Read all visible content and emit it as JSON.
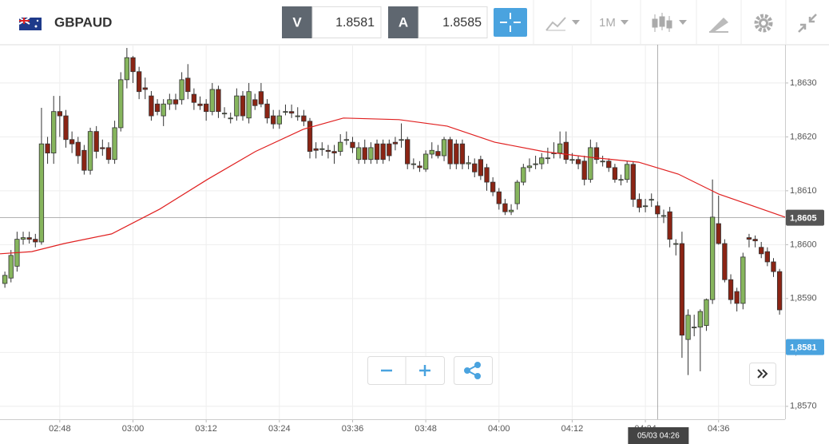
{
  "toolbar": {
    "symbol": "GBPAUD",
    "bid": {
      "label": "V",
      "value": "1.8581"
    },
    "ask": {
      "label": "A",
      "value": "1.8585"
    },
    "timeframe": "1M"
  },
  "chart_data": {
    "type": "candlestick",
    "xlim": [
      -0.8,
      127.9
    ],
    "xticks": [
      {
        "value": 9,
        "label": "02:48"
      },
      {
        "value": 21,
        "label": "03:00"
      },
      {
        "value": 33,
        "label": "03:12"
      },
      {
        "value": 45,
        "label": "03:24"
      },
      {
        "value": 57,
        "label": "03:36"
      },
      {
        "value": 69,
        "label": "03:48"
      },
      {
        "value": 81,
        "label": "04:00"
      },
      {
        "value": 93,
        "label": "04:12"
      },
      {
        "value": 105,
        "label": "04:24"
      },
      {
        "value": 117,
        "label": "04:36"
      }
    ],
    "ylim": [
      1.85676,
      1.86371
    ],
    "yticks": [
      {
        "value": 1.857,
        "label": "1,8570"
      },
      {
        "value": 1.858,
        "label": "1,8580"
      },
      {
        "value": 1.859,
        "label": "1,8590"
      },
      {
        "value": 1.86,
        "label": "1,8600"
      },
      {
        "value": 1.861,
        "label": "1,8610"
      },
      {
        "value": 1.862,
        "label": "1,8620"
      },
      {
        "value": 1.863,
        "label": "1,8630"
      }
    ],
    "grid": true,
    "up_color": "#86b55d",
    "down_color": "#8b2414",
    "candles": [
      [
        1.85928,
        1.8595,
        1.8592,
        1.85943
      ],
      [
        1.85938,
        1.8599,
        1.8593,
        1.8598
      ],
      [
        1.8596,
        1.86024,
        1.8595,
        1.8601
      ],
      [
        1.8601,
        1.86024,
        1.86,
        1.86013
      ],
      [
        1.86013,
        1.86024,
        1.86002,
        1.8601
      ],
      [
        1.8601,
        1.8602,
        1.85995,
        1.86005
      ],
      [
        1.86005,
        1.86254,
        1.86,
        1.86187
      ],
      [
        1.86187,
        1.862,
        1.8615,
        1.8617
      ],
      [
        1.8617,
        1.86276,
        1.8615,
        1.86247
      ],
      [
        1.86247,
        1.86276,
        1.862,
        1.86239
      ],
      [
        1.86239,
        1.8625,
        1.8618,
        1.86195
      ],
      [
        1.86195,
        1.8621,
        1.8617,
        1.86187
      ],
      [
        1.8619,
        1.862,
        1.8615,
        1.86165
      ],
      [
        1.86175,
        1.86185,
        1.8613,
        1.86138
      ],
      [
        1.86138,
        1.86217,
        1.8613,
        1.8621
      ],
      [
        1.8621,
        1.8622,
        1.8616,
        1.86173
      ],
      [
        1.8618,
        1.86195,
        1.86165,
        1.86178
      ],
      [
        1.8618,
        1.8619,
        1.8615,
        1.86158
      ],
      [
        1.86158,
        1.8623,
        1.8615,
        1.86217
      ],
      [
        1.86217,
        1.8632,
        1.8621,
        1.86306
      ],
      [
        1.86306,
        1.86365,
        1.8629,
        1.86347
      ],
      [
        1.86347,
        1.8635,
        1.863,
        1.86321
      ],
      [
        1.86321,
        1.8633,
        1.8627,
        1.86284
      ],
      [
        1.86291,
        1.8631,
        1.8627,
        1.86288
      ],
      [
        1.86276,
        1.86285,
        1.8623,
        1.86239
      ],
      [
        1.86261,
        1.8627,
        1.8624,
        1.86247
      ],
      [
        1.86239,
        1.8627,
        1.8622,
        1.86261
      ],
      [
        1.86261,
        1.8628,
        1.8625,
        1.86269
      ],
      [
        1.86269,
        1.8628,
        1.8625,
        1.86261
      ],
      [
        1.86269,
        1.8632,
        1.8626,
        1.86306
      ],
      [
        1.86309,
        1.86335,
        1.8627,
        1.86284
      ],
      [
        1.86279,
        1.8629,
        1.8625,
        1.86264
      ],
      [
        1.86261,
        1.86275,
        1.8625,
        1.86258
      ],
      [
        1.86261,
        1.8627,
        1.8623,
        1.86247
      ],
      [
        1.86247,
        1.863,
        1.8624,
        1.86288
      ],
      [
        1.86288,
        1.86295,
        1.86235,
        1.86247
      ],
      [
        1.86244,
        1.86255,
        1.86235,
        1.86244
      ],
      [
        1.86235,
        1.86245,
        1.86225,
        1.86235
      ],
      [
        1.86239,
        1.8629,
        1.8623,
        1.86276
      ],
      [
        1.86276,
        1.86285,
        1.8623,
        1.86239
      ],
      [
        1.86235,
        1.863,
        1.86225,
        1.86284
      ],
      [
        1.86269,
        1.8628,
        1.8625,
        1.86258
      ],
      [
        1.86284,
        1.863,
        1.86255,
        1.86261
      ],
      [
        1.86261,
        1.8627,
        1.86225,
        1.86235
      ],
      [
        1.86239,
        1.8625,
        1.86215,
        1.86224
      ],
      [
        1.86224,
        1.8625,
        1.86215,
        1.86239
      ],
      [
        1.86247,
        1.8626,
        1.8624,
        1.86247
      ],
      [
        1.86247,
        1.8626,
        1.86235,
        1.86244
      ],
      [
        1.86239,
        1.86255,
        1.8623,
        1.86239
      ],
      [
        1.86239,
        1.8625,
        1.8622,
        1.86229
      ],
      [
        1.86229,
        1.86235,
        1.8616,
        1.86173
      ],
      [
        1.86178,
        1.8619,
        1.8616,
        1.86175
      ],
      [
        1.86178,
        1.8619,
        1.86165,
        1.86178
      ],
      [
        1.86175,
        1.86185,
        1.8616,
        1.86173
      ],
      [
        1.86173,
        1.86185,
        1.8615,
        1.8617
      ],
      [
        1.86173,
        1.86205,
        1.86165,
        1.8619
      ],
      [
        1.86195,
        1.8621,
        1.86185,
        1.86195
      ],
      [
        1.8619,
        1.862,
        1.8617,
        1.8618
      ],
      [
        1.86158,
        1.8619,
        1.8615,
        1.8618
      ],
      [
        1.8618,
        1.86195,
        1.8615,
        1.86158
      ],
      [
        1.86158,
        1.8619,
        1.8615,
        1.8618
      ],
      [
        1.86187,
        1.86195,
        1.8615,
        1.86158
      ],
      [
        1.86187,
        1.86195,
        1.8615,
        1.86158
      ],
      [
        1.86187,
        1.86195,
        1.86155,
        1.86165
      ],
      [
        1.8619,
        1.862,
        1.86175,
        1.86187
      ],
      [
        1.86195,
        1.86225,
        1.8618,
        1.86195
      ],
      [
        1.86195,
        1.862,
        1.8614,
        1.8615
      ],
      [
        1.8615,
        1.8616,
        1.8614,
        1.8615
      ],
      [
        1.86146,
        1.86155,
        1.86135,
        1.86143
      ],
      [
        1.8614,
        1.86175,
        1.86135,
        1.86168
      ],
      [
        1.86168,
        1.8619,
        1.8616,
        1.86175
      ],
      [
        1.86173,
        1.86185,
        1.8616,
        1.86165
      ],
      [
        1.86165,
        1.862,
        1.86155,
        1.86195
      ],
      [
        1.86195,
        1.862,
        1.8614,
        1.8615
      ],
      [
        1.86187,
        1.86195,
        1.8614,
        1.8615
      ],
      [
        1.86187,
        1.86195,
        1.8614,
        1.8615
      ],
      [
        1.8615,
        1.86165,
        1.8614,
        1.86152
      ],
      [
        1.8615,
        1.8616,
        1.86125,
        1.86135
      ],
      [
        1.86158,
        1.86165,
        1.8612,
        1.86128
      ],
      [
        1.86143,
        1.8615,
        1.861,
        1.86116
      ],
      [
        1.86116,
        1.86125,
        1.8609,
        1.86098
      ],
      [
        1.86098,
        1.86105,
        1.86065,
        1.86076
      ],
      [
        1.86076,
        1.86085,
        1.86055,
        1.86061
      ],
      [
        1.86061,
        1.86075,
        1.86055,
        1.86064
      ],
      [
        1.86076,
        1.8612,
        1.86065,
        1.86116
      ],
      [
        1.86116,
        1.8615,
        1.8611,
        1.86143
      ],
      [
        1.86143,
        1.8616,
        1.86135,
        1.86146
      ],
      [
        1.8615,
        1.86165,
        1.8614,
        1.8615
      ],
      [
        1.8615,
        1.8617,
        1.8614,
        1.86161
      ],
      [
        1.86161,
        1.8618,
        1.8615,
        1.86161
      ],
      [
        1.8617,
        1.8619,
        1.8616,
        1.8617
      ],
      [
        1.8617,
        1.8621,
        1.8616,
        1.86187
      ],
      [
        1.8619,
        1.8621,
        1.8615,
        1.86158
      ],
      [
        1.86158,
        1.8617,
        1.8615,
        1.86158
      ],
      [
        1.86158,
        1.86165,
        1.8614,
        1.8615
      ],
      [
        1.86155,
        1.86165,
        1.8611,
        1.86121
      ],
      [
        1.86121,
        1.86195,
        1.86115,
        1.8618
      ],
      [
        1.8618,
        1.8619,
        1.8615,
        1.86158
      ],
      [
        1.86155,
        1.86165,
        1.86145,
        1.86155
      ],
      [
        1.86155,
        1.8616,
        1.86135,
        1.86143
      ],
      [
        1.86143,
        1.8615,
        1.86115,
        1.86121
      ],
      [
        1.86121,
        1.8613,
        1.8611,
        1.86121
      ],
      [
        1.86121,
        1.86155,
        1.86115,
        1.86149
      ],
      [
        1.86149,
        1.86155,
        1.8607,
        1.86084
      ],
      [
        1.86084,
        1.86095,
        1.8606,
        1.86069
      ],
      [
        1.86072,
        1.86085,
        1.8606,
        1.86072
      ],
      [
        1.86084,
        1.86095,
        1.8607,
        1.86084
      ],
      [
        1.86072,
        1.8608,
        1.8605,
        1.86057
      ],
      [
        1.86054,
        1.86065,
        1.8604,
        1.86054
      ],
      [
        1.86061,
        1.8607,
        1.85995,
        1.8601
      ],
      [
        1.86002,
        1.8601,
        1.8598,
        1.86002
      ],
      [
        1.86002,
        1.86024,
        1.8579,
        1.85832
      ],
      [
        1.85824,
        1.8588,
        1.85758,
        1.85869
      ],
      [
        1.85847,
        1.8587,
        1.8583,
        1.85847
      ],
      [
        1.85847,
        1.8588,
        1.85765,
        1.85876
      ],
      [
        1.8585,
        1.859,
        1.8584,
        1.85898
      ],
      [
        1.85898,
        1.86121,
        1.8589,
        1.86051
      ],
      [
        1.86039,
        1.86091,
        1.86,
        1.86002
      ],
      [
        1.86002,
        1.8601,
        1.8593,
        1.85935
      ],
      [
        1.85935,
        1.85945,
        1.8589,
        1.85898
      ],
      [
        1.85913,
        1.8592,
        1.85876,
        1.85891
      ],
      [
        1.85891,
        1.85985,
        1.8588,
        1.85977
      ],
      [
        1.86013,
        1.8602,
        1.85995,
        1.8601
      ],
      [
        1.8601,
        1.86017,
        1.85995,
        1.86007
      ],
      [
        1.85995,
        1.86005,
        1.85975,
        1.85983
      ],
      [
        1.85987,
        1.85995,
        1.8596,
        1.85968
      ],
      [
        1.85968,
        1.85975,
        1.8594,
        1.8595
      ],
      [
        1.8595,
        1.85955,
        1.8587,
        1.85879
      ]
    ],
    "ma": {
      "color": "#e02020",
      "x": [
        -0.8,
        4.4,
        9.7,
        17.5,
        25.4,
        33.2,
        41.1,
        48.9,
        55.5,
        64.6,
        72.5,
        80.3,
        88.2,
        96,
        103.9,
        110.4,
        117,
        127.9
      ],
      "values": [
        1.85983,
        1.85987,
        1.86002,
        1.8602,
        1.86066,
        1.86121,
        1.86173,
        1.86214,
        1.86235,
        1.86232,
        1.8622,
        1.8619,
        1.86173,
        1.86162,
        1.86153,
        1.86131,
        1.86094,
        1.86051
      ]
    },
    "crosshair": {
      "x": {
        "value": 107,
        "label": "05/03 04:26"
      },
      "y": {
        "value": 1.8605,
        "label": "1,8605"
      }
    },
    "last_price": {
      "value": 1.8581,
      "label": "1,8581"
    }
  }
}
